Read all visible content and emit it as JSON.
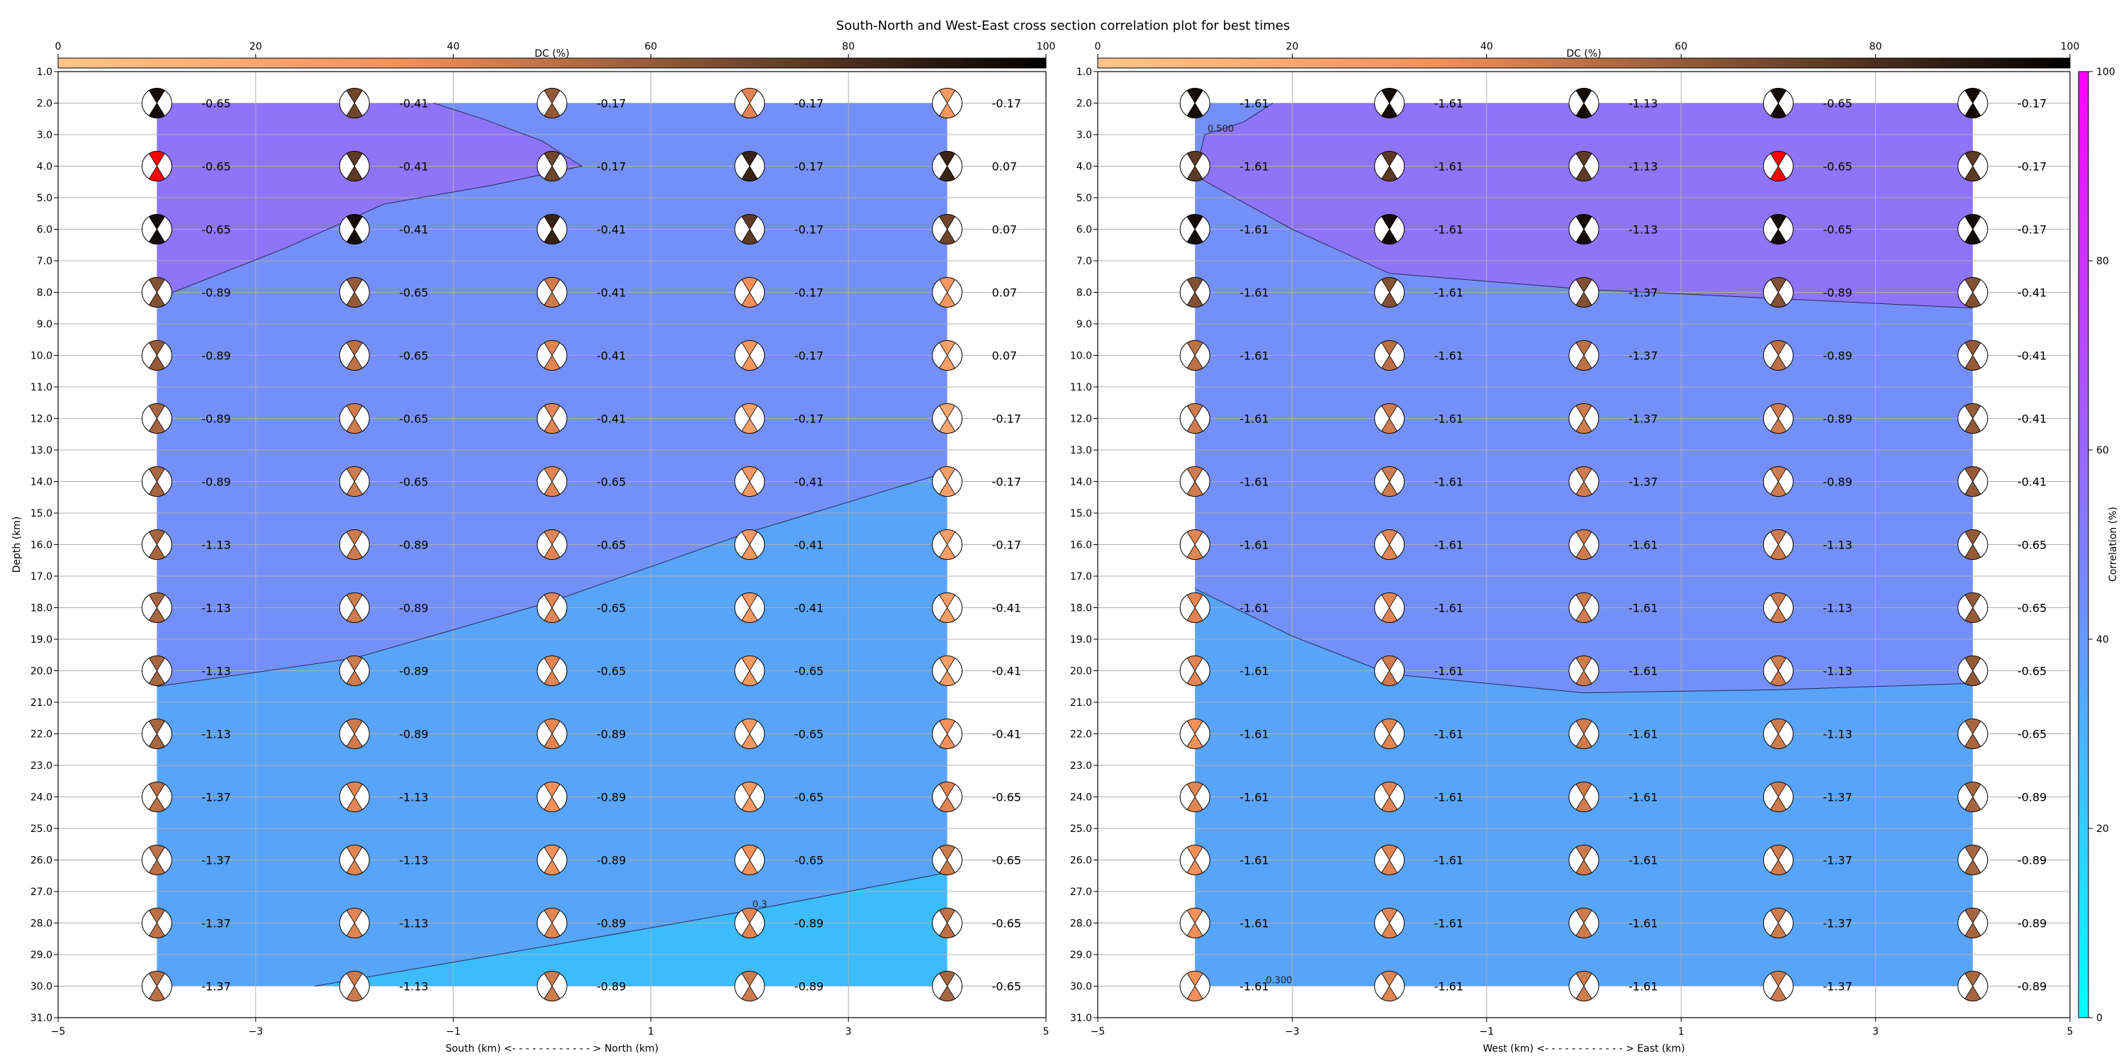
{
  "title": "South-North and West-East cross section correlation plot for best times",
  "dc_colorbar": {
    "label": "DC (%)",
    "ticks": [
      "0",
      "20",
      "40",
      "60",
      "80",
      "100"
    ]
  },
  "corr_colorbar": {
    "label": "Correlation (%)",
    "ticks": [
      "0",
      "20",
      "40",
      "60",
      "80",
      "100"
    ]
  },
  "colors": {
    "level_low": "#3cbcfa",
    "level_mid": "#58a4f9",
    "level_mid2": "#7490f8",
    "level_high": "#8e74f8",
    "red_beachball": "#ff0000"
  },
  "chart_data": [
    {
      "type": "heatmap",
      "xlabel": "South (km) <- - - - - - - - - - - - > North (km)",
      "ylabel": "Depth (km)",
      "xlim": [
        -5,
        5
      ],
      "ylim": [
        31,
        1
      ],
      "x_ticks": [
        "−5",
        "−3",
        "−1",
        "1",
        "3",
        "5"
      ],
      "y_ticks": [
        "1.0",
        "2.0",
        "3.0",
        "4.0",
        "5.0",
        "6.0",
        "7.0",
        "8.0",
        "9.0",
        "10.0",
        "11.0",
        "12.0",
        "13.0",
        "14.0",
        "15.0",
        "16.0",
        "17.0",
        "18.0",
        "19.0",
        "20.0",
        "21.0",
        "22.0",
        "23.0",
        "24.0",
        "25.0",
        "26.0",
        "27.0",
        "28.0",
        "29.0",
        "30.0",
        "31.0"
      ],
      "x": [
        -4,
        -2,
        0,
        2,
        4
      ],
      "depths": [
        2,
        4,
        6,
        8,
        10,
        12,
        14,
        16,
        18,
        20,
        22,
        24,
        26,
        28,
        30
      ],
      "labels": [
        [
          "-0.65",
          "-0.41",
          "-0.17",
          "-0.17",
          "-0.17"
        ],
        [
          "-0.65",
          "-0.41",
          "-0.17",
          "-0.17",
          "0.07"
        ],
        [
          "-0.65",
          "-0.41",
          "-0.41",
          "-0.17",
          "0.07"
        ],
        [
          "-0.89",
          "-0.65",
          "-0.41",
          "-0.17",
          "0.07"
        ],
        [
          "-0.89",
          "-0.65",
          "-0.41",
          "-0.17",
          "0.07"
        ],
        [
          "-0.89",
          "-0.65",
          "-0.41",
          "-0.17",
          "-0.17"
        ],
        [
          "-0.89",
          "-0.65",
          "-0.65",
          "-0.41",
          "-0.17"
        ],
        [
          "-1.13",
          "-0.89",
          "-0.65",
          "-0.41",
          "-0.17"
        ],
        [
          "-1.13",
          "-0.89",
          "-0.65",
          "-0.41",
          "-0.41"
        ],
        [
          "-1.13",
          "-0.89",
          "-0.65",
          "-0.65",
          "-0.41"
        ],
        [
          "-1.13",
          "-0.89",
          "-0.89",
          "-0.65",
          "-0.41"
        ],
        [
          "-1.37",
          "-1.13",
          "-0.89",
          "-0.65",
          "-0.65"
        ],
        [
          "-1.37",
          "-1.13",
          "-0.89",
          "-0.65",
          "-0.65"
        ],
        [
          "-1.37",
          "-1.13",
          "-0.89",
          "-0.89",
          "-0.65"
        ],
        [
          "-1.37",
          "-1.13",
          "-0.89",
          "-0.89",
          "-0.65"
        ]
      ],
      "dc": [
        [
          95,
          70,
          60,
          40,
          30
        ],
        [
          95,
          75,
          70,
          85,
          85
        ],
        [
          95,
          95,
          85,
          75,
          70
        ],
        [
          65,
          60,
          45,
          35,
          30
        ],
        [
          60,
          50,
          40,
          30,
          25
        ],
        [
          55,
          45,
          40,
          25,
          20
        ],
        [
          55,
          45,
          40,
          30,
          25
        ],
        [
          55,
          45,
          40,
          30,
          25
        ],
        [
          55,
          45,
          40,
          30,
          25
        ],
        [
          55,
          45,
          40,
          30,
          25
        ],
        [
          55,
          45,
          40,
          30,
          35
        ],
        [
          50,
          40,
          35,
          30,
          40
        ],
        [
          50,
          40,
          35,
          35,
          45
        ],
        [
          50,
          40,
          40,
          40,
          50
        ],
        [
          50,
          45,
          45,
          45,
          55
        ]
      ],
      "red_cell": [
        1,
        0
      ],
      "contours": [
        {
          "label": "",
          "points": [
            [
              -4,
              8.2
            ],
            [
              -2.7,
              6.6
            ],
            [
              -1.7,
              5.2
            ],
            [
              -0.6,
              4.6
            ],
            [
              0.3,
              4.0
            ],
            [
              -0.1,
              3.2
            ],
            [
              -0.7,
              2.5
            ],
            [
              -1.2,
              2.0
            ]
          ]
        },
        {
          "label": "",
          "points": [
            [
              -4,
              20.5
            ],
            [
              -2,
              19.6
            ],
            [
              0,
              17.8
            ],
            [
              2,
              15.6
            ],
            [
              4,
              13.7
            ]
          ]
        },
        {
          "label": "0.3",
          "points": [
            [
              -2.4,
              30.0
            ],
            [
              0,
              28.7
            ],
            [
              2,
              27.6
            ],
            [
              4,
              26.4
            ]
          ]
        }
      ],
      "levels": [
        {
          "color_key": "level_high",
          "polygon": [
            [
              -4,
              2
            ],
            [
              -1.2,
              2
            ],
            [
              -0.7,
              2.5
            ],
            [
              -0.1,
              3.2
            ],
            [
              0.3,
              4.0
            ],
            [
              -0.6,
              4.6
            ],
            [
              -1.7,
              5.2
            ],
            [
              -2.7,
              6.6
            ],
            [
              -4,
              8.2
            ]
          ]
        },
        {
          "color_key": "level_mid2",
          "polygon": [
            [
              -4,
              8.2
            ],
            [
              -2.7,
              6.6
            ],
            [
              -1.7,
              5.2
            ],
            [
              -0.6,
              4.6
            ],
            [
              0.3,
              4.0
            ],
            [
              -0.1,
              3.2
            ],
            [
              -0.7,
              2.5
            ],
            [
              -1.2,
              2
            ],
            [
              4,
              2
            ],
            [
              4,
              13.7
            ],
            [
              2,
              15.6
            ],
            [
              0,
              17.8
            ],
            [
              -2,
              19.6
            ],
            [
              -4,
              20.5
            ]
          ]
        },
        {
          "color_key": "level_mid",
          "polygon": [
            [
              -4,
              20.5
            ],
            [
              -2,
              19.6
            ],
            [
              0,
              17.8
            ],
            [
              2,
              15.6
            ],
            [
              4,
              13.7
            ],
            [
              4,
              26.4
            ],
            [
              2,
              27.6
            ],
            [
              0,
              28.7
            ],
            [
              -2.4,
              30
            ],
            [
              -4,
              30
            ]
          ]
        },
        {
          "color_key": "level_low",
          "polygon": [
            [
              -2.4,
              30
            ],
            [
              0,
              28.7
            ],
            [
              2,
              27.6
            ],
            [
              4,
              26.4
            ],
            [
              4,
              30
            ]
          ]
        }
      ]
    },
    {
      "type": "heatmap",
      "xlabel": "West (km) <- - - - - - - - - - - - > East (km)",
      "ylabel": "",
      "xlim": [
        -5,
        5
      ],
      "ylim": [
        31,
        1
      ],
      "x_ticks": [
        "−5",
        "−3",
        "−1",
        "1",
        "3",
        "5"
      ],
      "y_ticks": [
        "1.0",
        "2.0",
        "3.0",
        "4.0",
        "5.0",
        "6.0",
        "7.0",
        "8.0",
        "9.0",
        "10.0",
        "11.0",
        "12.0",
        "13.0",
        "14.0",
        "15.0",
        "16.0",
        "17.0",
        "18.0",
        "19.0",
        "20.0",
        "21.0",
        "22.0",
        "23.0",
        "24.0",
        "25.0",
        "26.0",
        "27.0",
        "28.0",
        "29.0",
        "30.0",
        "31.0"
      ],
      "x": [
        -4,
        -2,
        0,
        2,
        4
      ],
      "depths": [
        2,
        4,
        6,
        8,
        10,
        12,
        14,
        16,
        18,
        20,
        22,
        24,
        26,
        28,
        30
      ],
      "labels": [
        [
          "-1.61",
          "-1.61",
          "-1.13",
          "-0.65",
          "-0.17"
        ],
        [
          "-1.61",
          "-1.61",
          "-1.13",
          "-0.65",
          "-0.17"
        ],
        [
          "-1.61",
          "-1.61",
          "-1.13",
          "-0.65",
          "-0.17"
        ],
        [
          "-1.61",
          "-1.61",
          "-1.37",
          "-0.89",
          "-0.41"
        ],
        [
          "-1.61",
          "-1.61",
          "-1.37",
          "-0.89",
          "-0.41"
        ],
        [
          "-1.61",
          "-1.61",
          "-1.37",
          "-0.89",
          "-0.41"
        ],
        [
          "-1.61",
          "-1.61",
          "-1.37",
          "-0.89",
          "-0.41"
        ],
        [
          "-1.61",
          "-1.61",
          "-1.61",
          "-1.13",
          "-0.65"
        ],
        [
          "-1.61",
          "-1.61",
          "-1.61",
          "-1.13",
          "-0.65"
        ],
        [
          "-1.61",
          "-1.61",
          "-1.61",
          "-1.13",
          "-0.65"
        ],
        [
          "-1.61",
          "-1.61",
          "-1.61",
          "-1.13",
          "-0.65"
        ],
        [
          "-1.61",
          "-1.61",
          "-1.61",
          "-1.37",
          "-0.89"
        ],
        [
          "-1.61",
          "-1.61",
          "-1.61",
          "-1.37",
          "-0.89"
        ],
        [
          "-1.61",
          "-1.61",
          "-1.61",
          "-1.37",
          "-0.89"
        ],
        [
          "-1.61",
          "-1.61",
          "-1.61",
          "-1.37",
          "-0.89"
        ]
      ],
      "dc": [
        [
          95,
          95,
          95,
          95,
          95
        ],
        [
          75,
          75,
          75,
          85,
          75
        ],
        [
          95,
          95,
          95,
          95,
          95
        ],
        [
          65,
          65,
          65,
          65,
          65
        ],
        [
          50,
          50,
          50,
          50,
          60
        ],
        [
          45,
          45,
          45,
          45,
          60
        ],
        [
          45,
          45,
          45,
          45,
          60
        ],
        [
          40,
          40,
          45,
          45,
          60
        ],
        [
          40,
          40,
          45,
          45,
          60
        ],
        [
          40,
          45,
          45,
          45,
          60
        ],
        [
          35,
          40,
          45,
          45,
          55
        ],
        [
          40,
          40,
          45,
          45,
          55
        ],
        [
          35,
          40,
          45,
          45,
          55
        ],
        [
          35,
          40,
          45,
          45,
          55
        ],
        [
          35,
          40,
          45,
          45,
          55
        ]
      ],
      "red_cell": [
        1,
        3
      ],
      "contours": [
        {
          "label": "0.500",
          "points": [
            [
              -3.2,
              2.0
            ],
            [
              -3.5,
              2.6
            ],
            [
              -3.9,
              3.0
            ],
            [
              -4,
              4.3
            ],
            [
              -3.0,
              6.0
            ],
            [
              -2.5,
              6.7
            ],
            [
              -2,
              7.4
            ],
            [
              0,
              7.9
            ],
            [
              2,
              8.2
            ],
            [
              4,
              8.5
            ]
          ]
        },
        {
          "label": "",
          "points": [
            [
              -4,
              17.4
            ],
            [
              -3,
              18.9
            ],
            [
              -2,
              20.1
            ],
            [
              0,
              20.7
            ],
            [
              2,
              20.6
            ],
            [
              4,
              20.4
            ]
          ]
        },
        {
          "label": "0.300",
          "points": [
            [
              -3.3,
              30.0
            ]
          ]
        }
      ],
      "levels": [
        {
          "color_key": "level_mid2",
          "polygon": [
            [
              -4,
              2
            ],
            [
              -3.2,
              2
            ],
            [
              -3.5,
              2.6
            ],
            [
              -3.9,
              3.0
            ],
            [
              -4,
              4.3
            ]
          ]
        },
        {
          "color_key": "level_high",
          "polygon": [
            [
              -3.2,
              2
            ],
            [
              4,
              2
            ],
            [
              4,
              8.5
            ],
            [
              2,
              8.2
            ],
            [
              0,
              7.9
            ],
            [
              -2,
              7.4
            ],
            [
              -2.5,
              6.7
            ],
            [
              -3.0,
              6.0
            ],
            [
              -4,
              4.3
            ],
            [
              -3.9,
              3.0
            ],
            [
              -3.5,
              2.6
            ]
          ]
        },
        {
          "color_key": "level_mid2",
          "polygon": [
            [
              -4,
              4.3
            ],
            [
              -3.0,
              6.0
            ],
            [
              -2.5,
              6.7
            ],
            [
              -2,
              7.4
            ],
            [
              0,
              7.9
            ],
            [
              2,
              8.2
            ],
            [
              4,
              8.5
            ],
            [
              4,
              20.4
            ],
            [
              2,
              20.6
            ],
            [
              0,
              20.7
            ],
            [
              -2,
              20.1
            ],
            [
              -3,
              18.9
            ],
            [
              -4,
              17.4
            ]
          ]
        },
        {
          "color_key": "level_mid",
          "polygon": [
            [
              -4,
              17.4
            ],
            [
              -3,
              18.9
            ],
            [
              -2,
              20.1
            ],
            [
              0,
              20.7
            ],
            [
              2,
              20.6
            ],
            [
              4,
              20.4
            ],
            [
              4,
              30
            ],
            [
              -4,
              30
            ]
          ]
        }
      ]
    }
  ]
}
